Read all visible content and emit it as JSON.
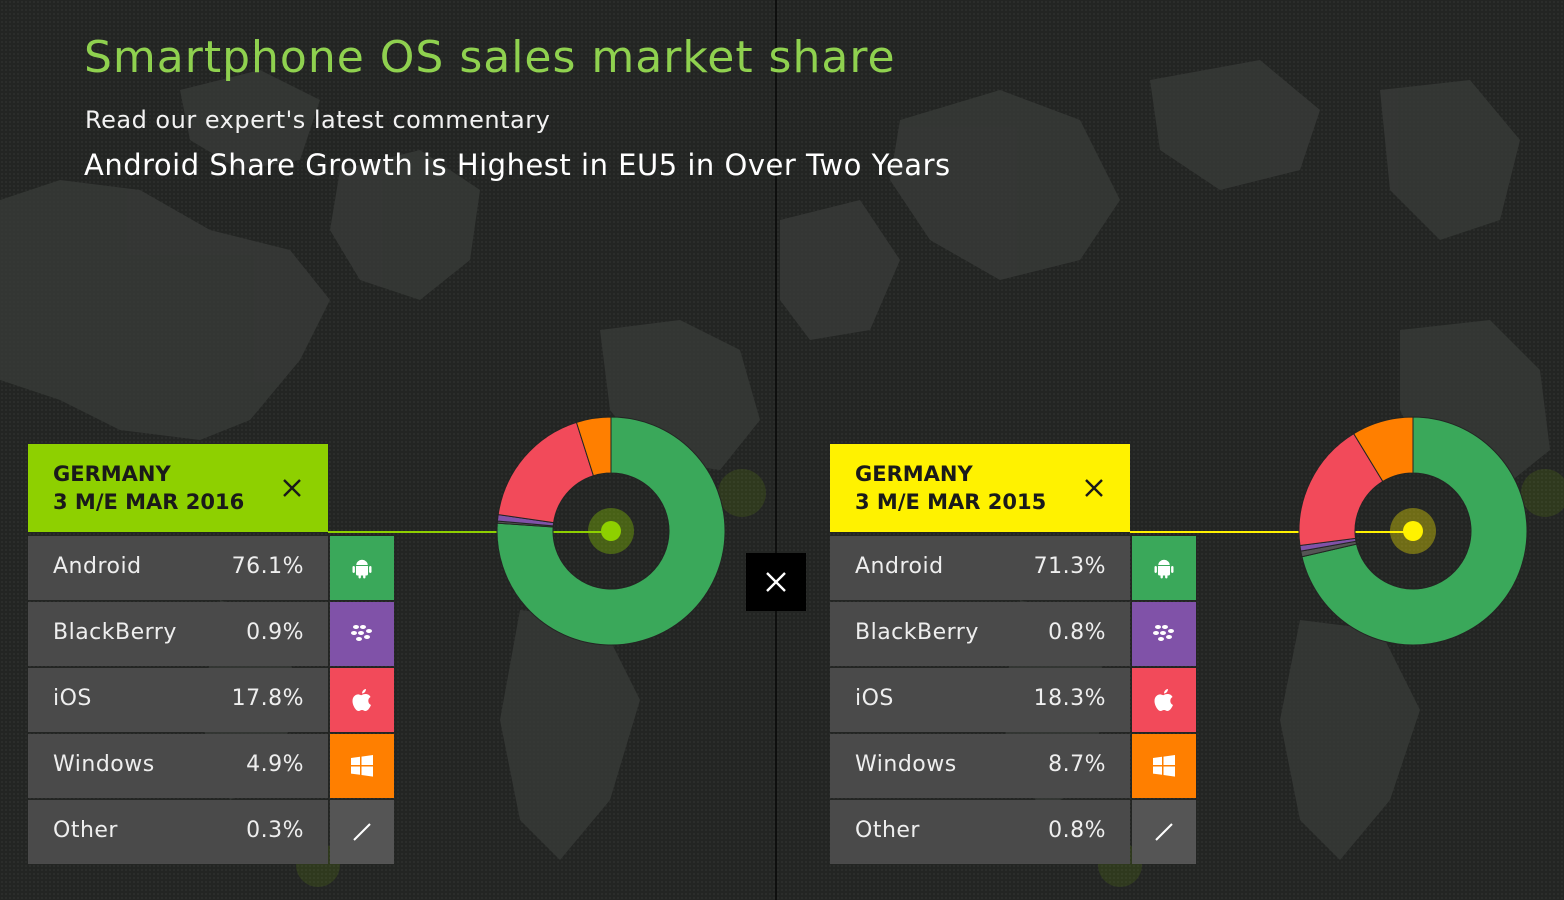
{
  "page": {
    "title": "Smartphone OS sales market share",
    "subtitle": "Read our expert's latest commentary",
    "headline": "Android Share Growth is Highest in EU5 in Over Two Years"
  },
  "colors": {
    "android": "#3aa85a",
    "blackberry": "#8052a8",
    "ios": "#f24a5a",
    "windows": "#ff7f00",
    "other": "#555555",
    "title": "#8fd14f",
    "left_accent": "#8ed000",
    "right_accent": "#fff200"
  },
  "icons": [
    "android-icon",
    "blackberry-icon",
    "apple-icon",
    "windows-icon",
    "slash-icon",
    "close-icon"
  ],
  "chart_data": [
    {
      "type": "pie",
      "variant": "donut",
      "title": "GERMANY",
      "period": "3 M/E MAR 2016",
      "categories": [
        "Android",
        "BlackBerry",
        "iOS",
        "Windows",
        "Other"
      ],
      "values": [
        76.1,
        0.9,
        17.8,
        4.9,
        0.3
      ],
      "labels": [
        "76.1%",
        "0.9%",
        "17.8%",
        "4.9%",
        "0.3%"
      ],
      "unit": "%"
    },
    {
      "type": "pie",
      "variant": "donut",
      "title": "GERMANY",
      "period": "3 M/E MAR 2015",
      "categories": [
        "Android",
        "BlackBerry",
        "iOS",
        "Windows",
        "Other"
      ],
      "values": [
        71.3,
        0.8,
        18.3,
        8.7,
        0.8
      ],
      "labels": [
        "71.3%",
        "0.8%",
        "18.3%",
        "8.7%",
        "0.8%"
      ],
      "unit": "%"
    }
  ]
}
